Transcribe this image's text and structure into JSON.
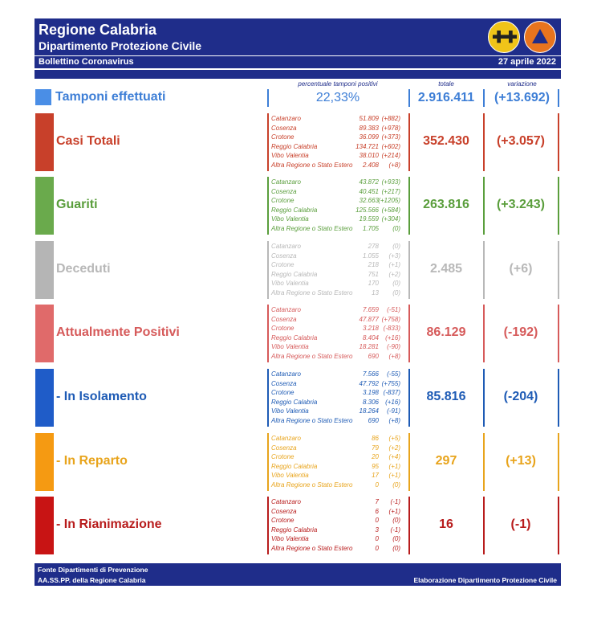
{
  "header": {
    "title": "Regione Calabria",
    "subtitle": "Dipartimento Protezione Civile",
    "bulletin": "Bollettino Coronavirus",
    "date": "27 aprile 2022",
    "logo1_text": "✚✚",
    "logo2_text": "PROTEZIONE CIVILE CALABRIA"
  },
  "col_headers": {
    "pct": "percentuale tamponi positivi",
    "total": "totale",
    "variation": "variazione"
  },
  "tamponi": {
    "label": "Tamponi effettuati",
    "pct": "22,33%",
    "total": "2.916.411",
    "variation": "(+13.692)",
    "color": "#3d7ed6"
  },
  "rows": [
    {
      "label": "Casi Totali",
      "total": "352.430",
      "variation": "(+3.057)",
      "color": "#c8402a",
      "bar": "#c8402a",
      "prov": [
        [
          "Catanzaro",
          "51.809",
          "(+882)"
        ],
        [
          "Cosenza",
          "89.383",
          "(+978)"
        ],
        [
          "Crotone",
          "36.099",
          "(+373)"
        ],
        [
          "Reggio Calabria",
          "134.721",
          "(+602)"
        ],
        [
          "Vibo Valentia",
          "38.010",
          "(+214)"
        ],
        [
          "Altra Regione o Stato Estero",
          "2.408",
          "(+8)"
        ]
      ]
    },
    {
      "label": "Guariti",
      "total": "263.816",
      "variation": "(+3.243)",
      "color": "#5a9e3c",
      "bar": "#6aaa4c",
      "prov": [
        [
          "Catanzaro",
          "43.872",
          "(+933)"
        ],
        [
          "Cosenza",
          "40.451",
          "(+217)"
        ],
        [
          "Crotone",
          "32.663",
          "(+1205)"
        ],
        [
          "Reggio Calabria",
          "125.566",
          "(+584)"
        ],
        [
          "Vibo Valentia",
          "19.559",
          "(+304)"
        ],
        [
          "Altra Regione o Stato Estero",
          "1.705",
          "(0)"
        ]
      ]
    },
    {
      "label": "Deceduti",
      "total": "2.485",
      "variation": "(+6)",
      "color": "#b8b8b8",
      "bar": "#b5b5b5",
      "prov": [
        [
          "Catanzaro",
          "278",
          "(0)"
        ],
        [
          "Cosenza",
          "1.055",
          "(+3)"
        ],
        [
          "Crotone",
          "218",
          "(+1)"
        ],
        [
          "Reggio Calabria",
          "751",
          "(+2)"
        ],
        [
          "Vibo Valentia",
          "170",
          "(0)"
        ],
        [
          "Altra Regione o Stato Estero",
          "13",
          "(0)"
        ]
      ]
    },
    {
      "label": "Attualmente Positivi",
      "total": "86.129",
      "variation": "(-192)",
      "color": "#d65a5a",
      "bar": "#e06a6a",
      "prov": [
        [
          "Catanzaro",
          "7.659",
          "(-51)"
        ],
        [
          "Cosenza",
          "47.877",
          "(+758)"
        ],
        [
          "Crotone",
          "3.218",
          "(-833)"
        ],
        [
          "Reggio Calabria",
          "8.404",
          "(+16)"
        ],
        [
          "Vibo Valentia",
          "18.281",
          "(-90)"
        ],
        [
          "Altra Regione o Stato Estero",
          "690",
          "(+8)"
        ]
      ]
    },
    {
      "label": " - In Isolamento",
      "total": "85.816",
      "variation": "(-204)",
      "color": "#1e5bb5",
      "bar": "#1f5cc8",
      "prov": [
        [
          "Catanzaro",
          "7.566",
          "(-55)"
        ],
        [
          "Cosenza",
          "47.792",
          "(+755)"
        ],
        [
          "Crotone",
          "3.198",
          "(-837)"
        ],
        [
          "Reggio Calabria",
          "8.306",
          "(+16)"
        ],
        [
          "Vibo Valentia",
          "18.264",
          "(-91)"
        ],
        [
          "Altra Regione o Stato Estero",
          "690",
          "(+8)"
        ]
      ]
    },
    {
      "label": " - In Reparto",
      "total": "297",
      "variation": "(+13)",
      "color": "#e8a41c",
      "bar": "#f59a12",
      "prov": [
        [
          "Catanzaro",
          "86",
          "(+5)"
        ],
        [
          "Cosenza",
          "79",
          "(+2)"
        ],
        [
          "Crotone",
          "20",
          "(+4)"
        ],
        [
          "Reggio Calabria",
          "95",
          "(+1)"
        ],
        [
          "Vibo Valentia",
          "17",
          "(+1)"
        ],
        [
          "Altra Regione o Stato Estero",
          "0",
          "(0)"
        ]
      ]
    },
    {
      "label": " - In Rianimazione",
      "total": "16",
      "variation": "(-1)",
      "color": "#b81c1c",
      "bar": "#c81414",
      "prov": [
        [
          "Catanzaro",
          "7",
          "(-1)"
        ],
        [
          "Cosenza",
          "6",
          "(+1)"
        ],
        [
          "Crotone",
          "0",
          "(0)"
        ],
        [
          "Reggio Calabria",
          "3",
          "(-1)"
        ],
        [
          "Vibo Valentia",
          "0",
          "(0)"
        ],
        [
          "Altra Regione o Stato Estero",
          "0",
          "(0)"
        ]
      ]
    }
  ],
  "footer": {
    "line1": "Fonte Dipartimenti di Prevenzione",
    "line2": "AA.SS.PP.  della Regione Calabria",
    "right": "Elaborazione Dipartimento Protezione Civile"
  }
}
